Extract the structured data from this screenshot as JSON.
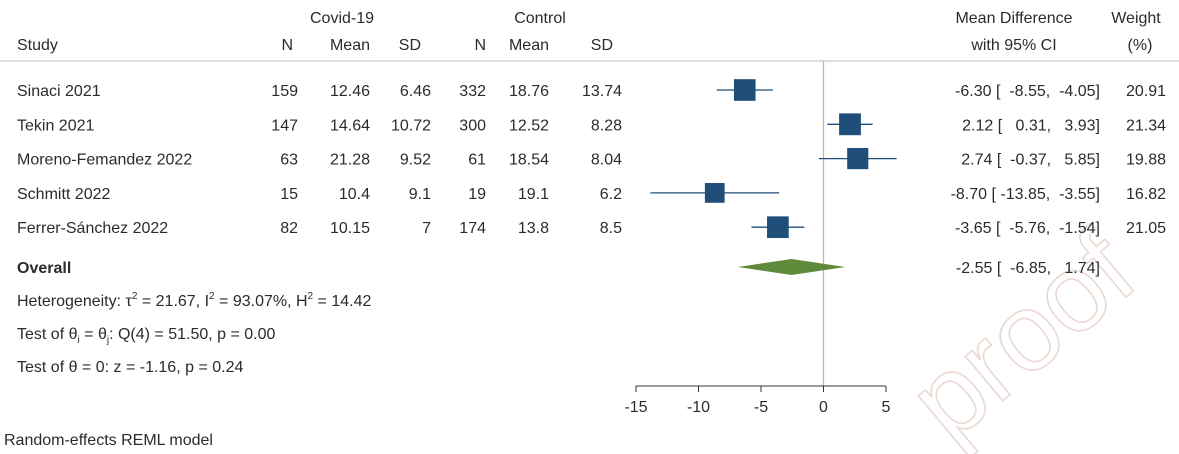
{
  "header": {
    "group1": "Covid-19",
    "group2": "Control",
    "study": "Study",
    "n": "N",
    "mean": "Mean",
    "sd": "SD",
    "effect_line1": "Mean Difference",
    "effect_line2": "with 95% CI",
    "weight_line1": "Weight",
    "weight_line2": "(%)"
  },
  "watermark": "proof",
  "chart_data": {
    "type": "forest",
    "studies": [
      {
        "study": "Sinaci  2021",
        "n1": "159",
        "mean1": "12.46",
        "sd1": "6.46",
        "n2": "332",
        "mean2": "18.76",
        "sd2": "13.74",
        "md": -6.3,
        "lo": -8.55,
        "hi": -4.05,
        "weight": 20.91,
        "ci_text": "-6.30 [  -8.55,  -4.05]",
        "weight_text": "20.91"
      },
      {
        "study": "Tekin 2021",
        "n1": "147",
        "mean1": "14.64",
        "sd1": "10.72",
        "n2": "300",
        "mean2": "12.52",
        "sd2": "8.28",
        "md": 2.12,
        "lo": 0.31,
        "hi": 3.93,
        "weight": 21.34,
        "ci_text": "2.12 [   0.31,   3.93]",
        "weight_text": "21.34"
      },
      {
        "study": "Moreno-Femandez 2022",
        "n1": "63",
        "mean1": "21.28",
        "sd1": "9.52",
        "n2": "61",
        "mean2": "18.54",
        "sd2": "8.04",
        "md": 2.74,
        "lo": -0.37,
        "hi": 5.85,
        "weight": 19.88,
        "ci_text": "2.74 [  -0.37,   5.85]",
        "weight_text": "19.88"
      },
      {
        "study": "Schmitt 2022",
        "n1": "15",
        "mean1": "10.4",
        "sd1": "9.1",
        "n2": "19",
        "mean2": "19.1",
        "sd2": "6.2",
        "md": -8.7,
        "lo": -13.85,
        "hi": -3.55,
        "weight": 16.82,
        "ci_text": "-8.70 [ -13.85,  -3.55]",
        "weight_text": "16.82"
      },
      {
        "study": "Ferrer-Sánchez 2022",
        "n1": "82",
        "mean1": "10.15",
        "sd1": "7",
        "n2": "174",
        "mean2": "13.8",
        "sd2": "8.5",
        "md": -3.65,
        "lo": -5.76,
        "hi": -1.54,
        "weight": 21.05,
        "ci_text": "-3.65 [  -5.76,  -1.54]",
        "weight_text": "21.05"
      }
    ],
    "overall": {
      "label": "Overall",
      "md": -2.55,
      "lo": -6.85,
      "hi": 1.74,
      "ci_text": "-2.55 [  -6.85,   1.74]"
    },
    "heterogeneity": {
      "prefix": "Heterogeneity: ",
      "tau_sym": "τ",
      "tau_sup": "2",
      "tau_val": " = 21.67, ",
      "i_sym": "I",
      "i_sup": "2",
      "i_val": " = 93.07%, ",
      "h_sym": "H",
      "h_sup": "2",
      "h_val": " = 14.42"
    },
    "test_groups": {
      "prefix": "Test of ",
      "theta_i": "θ",
      "sub_i": "i",
      "eq": " = ",
      "theta_j": "θ",
      "sub_j": "j",
      "rest": ": Q(4) = 51.50, p = 0.00"
    },
    "test_zero": "Test of θ = 0: z = -1.16, p = 0.24",
    "model_note": "Random-effects REML model",
    "x_ticks": [
      -15,
      -10,
      -5,
      0,
      5
    ],
    "xlim": [
      -15,
      5
    ],
    "null_line": 0,
    "colors": {
      "box": "#1f4e79",
      "ci": "#1f4e79",
      "diamond": "#5e8a3a",
      "null_line": "#b5b5b5"
    }
  }
}
